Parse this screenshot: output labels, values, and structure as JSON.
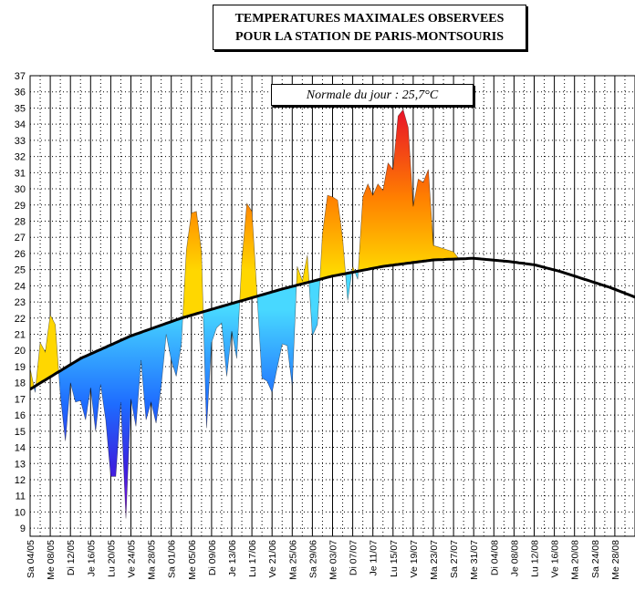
{
  "chart_data": {
    "type": "area",
    "title_line1": "TEMPERATURES MAXIMALES OBSERVEES",
    "title_line2": "POUR LA STATION DE PARIS-MONTSOURIS",
    "annotation": "Normale du jour : 25,7°C",
    "ylim": [
      8.5,
      37
    ],
    "y_ticks": [
      9,
      10,
      11,
      12,
      13,
      14,
      15,
      16,
      17,
      18,
      19,
      20,
      21,
      22,
      23,
      24,
      25,
      26,
      27,
      28,
      29,
      30,
      31,
      32,
      33,
      34,
      35,
      36,
      37
    ],
    "x_start_day_index": 0,
    "x_end_day_index": 89,
    "x_ticks": [
      {
        "day": 0,
        "label": "Sa 04/05"
      },
      {
        "day": 4,
        "label": "Me 08/05"
      },
      {
        "day": 8,
        "label": "Di 12/05"
      },
      {
        "day": 12,
        "label": "Je 16/05"
      },
      {
        "day": 16,
        "label": "Lu 20/05"
      },
      {
        "day": 20,
        "label": "Ve 24/05"
      },
      {
        "day": 24,
        "label": "Ma 28/05"
      },
      {
        "day": 28,
        "label": "Sa 01/06"
      },
      {
        "day": 32,
        "label": "Me 05/06"
      },
      {
        "day": 36,
        "label": "Di 09/06"
      },
      {
        "day": 40,
        "label": "Je 13/06"
      },
      {
        "day": 44,
        "label": "Lu 17/06"
      },
      {
        "day": 48,
        "label": "Ve 21/06"
      },
      {
        "day": 52,
        "label": "Ma 25/06"
      },
      {
        "day": 56,
        "label": "Sa 29/06"
      },
      {
        "day": 60,
        "label": "Me 03/07"
      },
      {
        "day": 64,
        "label": "Di 07/07"
      },
      {
        "day": 68,
        "label": "Je 11/07"
      },
      {
        "day": 72,
        "label": "Lu 15/07"
      },
      {
        "day": 76,
        "label": "Ve 19/07"
      },
      {
        "day": 80,
        "label": "Ma 23/07"
      },
      {
        "day": 84,
        "label": "Sa 27/07"
      },
      {
        "day": 88,
        "label": "Me 31/07"
      },
      {
        "day": 92,
        "label": "Di 04/08"
      },
      {
        "day": 96,
        "label": "Je 08/08"
      },
      {
        "day": 100,
        "label": "Lu 12/08"
      },
      {
        "day": 104,
        "label": "Ve 16/08"
      },
      {
        "day": 108,
        "label": "Ma 20/08"
      },
      {
        "day": 112,
        "label": "Sa 24/08"
      },
      {
        "day": 116,
        "label": "Me 28/08"
      }
    ],
    "x_axis_end_day": 120,
    "series": [
      {
        "name": "Temperature maximale observee",
        "days": [
          0,
          1,
          2,
          3,
          4,
          5,
          6,
          7,
          8,
          9,
          10,
          11,
          12,
          13,
          14,
          15,
          16,
          17,
          18,
          19,
          20,
          21,
          22,
          23,
          24,
          25,
          26,
          27,
          28,
          29,
          30,
          31,
          32,
          33,
          34,
          35,
          36,
          37,
          38,
          39,
          40,
          41,
          42,
          43,
          44,
          45,
          46,
          47,
          48,
          49,
          50,
          51,
          52,
          53,
          54,
          55,
          56,
          57,
          58,
          59,
          60,
          61,
          62,
          63,
          64,
          65,
          66,
          67,
          68,
          69,
          70,
          71,
          72,
          73,
          74,
          75,
          76,
          77,
          78,
          79,
          80,
          81,
          82,
          83,
          84,
          85
        ],
        "values": [
          18.9,
          17.4,
          20.5,
          19.9,
          22.2,
          21.6,
          17.2,
          14.4,
          18.0,
          16.8,
          16.9,
          15.7,
          17.7,
          15.0,
          17.9,
          15.7,
          12.2,
          12.2,
          16.8,
          9.6,
          17.0,
          15.3,
          19.4,
          15.7,
          16.8,
          15.5,
          17.8,
          21.0,
          19.4,
          18.4,
          20.4,
          26.2,
          28.5,
          28.6,
          26.1,
          15.2,
          20.5,
          21.4,
          21.7,
          18.4,
          21.2,
          19.5,
          25.5,
          29.1,
          28.6,
          23.6,
          18.3,
          18.1,
          17.4,
          18.9,
          20.4,
          20.3,
          17.8,
          25.2,
          24.3,
          25.9,
          20.9,
          21.6,
          27.2,
          29.6,
          29.5,
          29.3,
          26.9,
          23.1,
          25.2,
          24.4,
          29.5,
          30.3,
          29.6,
          30.3,
          29.9,
          31.6,
          31.2,
          34.5,
          34.9,
          33.8,
          28.9,
          30.6,
          30.4,
          31.2,
          26.5,
          26.4,
          26.3,
          26.2,
          26.1,
          25.7
        ]
      },
      {
        "name": "Normale du jour",
        "days": [
          0,
          10,
          20,
          30,
          40,
          50,
          60,
          70,
          80,
          88,
          95,
          100,
          105,
          110,
          115,
          120
        ],
        "values": [
          17.6,
          19.5,
          20.9,
          22.0,
          22.9,
          23.8,
          24.6,
          25.2,
          25.6,
          25.7,
          25.5,
          25.3,
          24.9,
          24.4,
          23.9,
          23.3
        ]
      }
    ]
  }
}
